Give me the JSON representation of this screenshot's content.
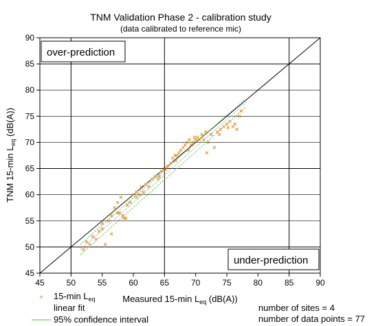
{
  "chart_data": {
    "type": "scatter",
    "title": "TNM Validation Phase 2 - calibration study",
    "subtitle": "(data calibrated to reference mic)",
    "xlabel": "Measured 15-min L",
    "xlabel_sub": "eq",
    "xlabel_unit": " (dB(A))",
    "ylabel": "TNM 15-min L",
    "ylabel_sub": "eq",
    "ylabel_unit": " (dB(A))",
    "xlim": [
      45,
      90
    ],
    "ylim": [
      45,
      90
    ],
    "xticks": [
      45,
      50,
      55,
      60,
      65,
      70,
      75,
      80,
      85,
      90
    ],
    "yticks": [
      45,
      50,
      55,
      60,
      65,
      70,
      75,
      80,
      85,
      90
    ],
    "grid": true,
    "grid_major": [
      50,
      65,
      85
    ],
    "annotations": {
      "over": "over-prediction",
      "under": "under-prediction",
      "sites": "number of sites = 4",
      "points": "number of data points = 77"
    },
    "legend": {
      "placement": "bottom-left",
      "entries": [
        {
          "label": "15-min L",
          "sub": "eq",
          "marker": "x",
          "color": "#e08a1e"
        },
        {
          "label": "linear fit",
          "marker": "line",
          "color": "#000000"
        },
        {
          "label": "95% confidence interval",
          "marker": "line",
          "color": "#33cc33"
        }
      ]
    },
    "reference_line": {
      "x": [
        45,
        90
      ],
      "y": [
        45,
        90
      ],
      "color": "#000000"
    },
    "linear_fit": {
      "x": [
        51.5,
        78
      ],
      "y": [
        49.5,
        77.5
      ],
      "color": "#8a8a8a"
    },
    "confidence_upper": {
      "x": [
        51.5,
        78
      ],
      "y": [
        50.5,
        78.3
      ],
      "color": "#33cc33"
    },
    "confidence_lower": {
      "x": [
        51.5,
        78
      ],
      "y": [
        48.5,
        76.7
      ],
      "color": "#33cc33"
    },
    "series": [
      {
        "marker_color": "#e08a1e",
        "x": [
          52.0,
          52.5,
          53.0,
          53.5,
          54.0,
          54.5,
          55.0,
          55.5,
          56.0,
          56.5,
          57.0,
          57.5,
          57.8,
          58.0,
          58.3,
          58.5,
          59.0,
          59.5,
          60.0,
          60.5,
          61.0,
          61.3,
          61.6,
          62.0,
          63.0,
          63.5,
          64.0,
          64.5,
          65.0,
          65.2,
          65.5,
          66.0,
          66.3,
          66.7,
          67.0,
          67.3,
          67.6,
          68.0,
          68.3,
          68.6,
          69.0,
          69.3,
          69.6,
          70.0,
          70.3,
          70.6,
          71.0,
          71.3,
          71.6,
          72.0,
          72.5,
          73.0,
          73.5,
          74.0,
          74.5,
          75.0,
          75.5,
          76.0,
          76.3,
          76.6,
          77.0,
          77.3,
          55.0,
          56.5,
          57.5,
          58.8,
          60.5,
          62.5,
          64.2,
          66.8,
          68.8,
          69.8,
          71.8,
          73.8,
          75.2
        ],
        "y": [
          49.5,
          51.0,
          50.5,
          52.0,
          51.5,
          53.0,
          54.5,
          50.5,
          55.0,
          56.0,
          57.5,
          58.5,
          56.5,
          59.5,
          56.0,
          55.5,
          58.0,
          58.5,
          60.0,
          59.5,
          60.0,
          61.5,
          60.5,
          62.0,
          63.0,
          63.5,
          63.0,
          64.5,
          65.0,
          64.8,
          65.5,
          66.0,
          67.0,
          67.5,
          67.5,
          68.0,
          68.5,
          69.0,
          69.5,
          70.0,
          70.5,
          69.5,
          70.0,
          70.5,
          71.0,
          70.5,
          71.5,
          70.5,
          72.0,
          70.0,
          71.5,
          69.0,
          72.0,
          72.5,
          73.0,
          73.5,
          74.0,
          73.0,
          73.5,
          72.5,
          75.0,
          76.0,
          53.5,
          52.5,
          56.5,
          55.5,
          60.5,
          61.5,
          63.5,
          66.5,
          68.5,
          71.0,
          68.0,
          71.5,
          72.8
        ]
      }
    ]
  }
}
